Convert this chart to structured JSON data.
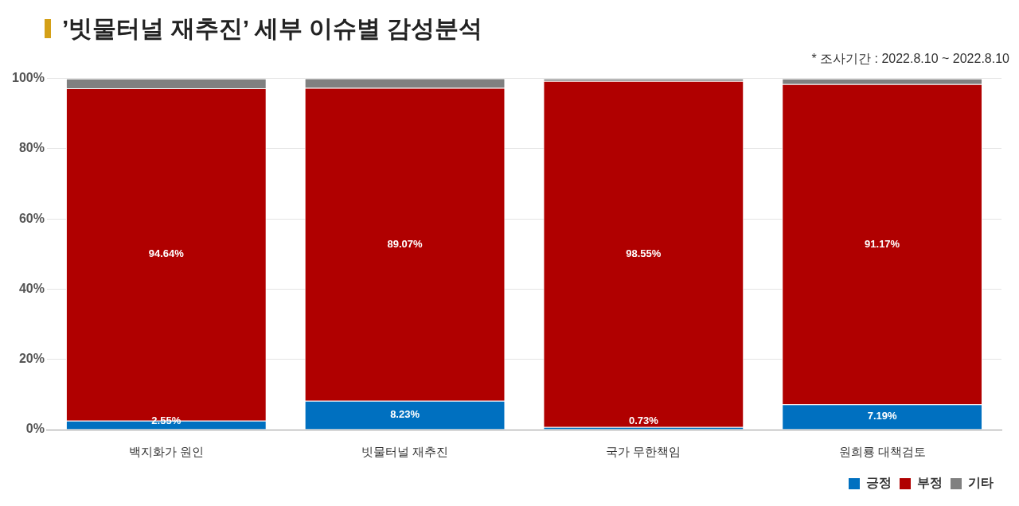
{
  "chart_data": {
    "type": "bar",
    "title": "’빗물터널 재추진’ 세부 이슈별 감성분석",
    "annotations": [
      "* 조사기간 : 2022.8.10 ~ 2022.8.10"
    ],
    "categories": [
      "백지화가 원인",
      "빗물터널 재추진",
      "국가 무한책임",
      "원희룡 대책검토"
    ],
    "stacked": true,
    "series": [
      {
        "name": "긍정",
        "color": "#0070c0",
        "values": [
          2.55,
          8.23,
          0.73,
          7.19
        ],
        "value_labels": [
          "2.55%",
          "8.23%",
          "0.73%",
          "7.19%"
        ]
      },
      {
        "name": "부정",
        "color": "#b00000",
        "values": [
          94.64,
          89.07,
          98.55,
          91.17
        ],
        "value_labels": [
          "94.64%",
          "89.07%",
          "98.55%",
          "91.17%"
        ]
      },
      {
        "name": "기타",
        "color": "#808080",
        "values": [
          2.8,
          2.7,
          0.7,
          1.6
        ],
        "value_labels": [
          null,
          null,
          null,
          null
        ]
      }
    ],
    "ylim": [
      0,
      100
    ],
    "yticks": [
      {
        "value": 0,
        "label": "0%"
      },
      {
        "value": 20,
        "label": "20%"
      },
      {
        "value": 40,
        "label": "40%"
      },
      {
        "value": 60,
        "label": "60%"
      },
      {
        "value": 80,
        "label": "80%"
      },
      {
        "value": 100,
        "label": "100%"
      }
    ],
    "grid": "y",
    "legend": "bottom right"
  }
}
